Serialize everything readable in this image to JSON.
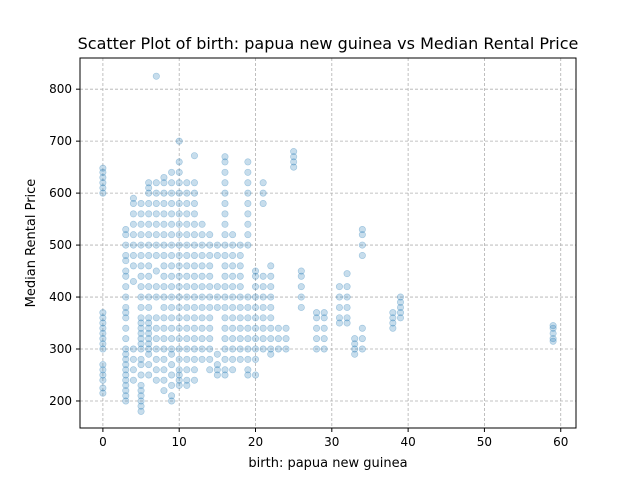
{
  "chart_data": {
    "type": "scatter",
    "title": "Scatter Plot of birth: papua new guinea vs Median Rental Price",
    "xlabel": "birth: papua new guinea",
    "ylabel": "Median Rental Price",
    "xlim": [
      -3,
      62
    ],
    "ylim": [
      148,
      860
    ],
    "xticks": [
      0,
      10,
      20,
      30,
      40,
      50,
      60
    ],
    "yticks": [
      200,
      300,
      400,
      500,
      600,
      700,
      800
    ],
    "grid": true,
    "marker_color": "#1f77b4",
    "marker_alpha": 0.25,
    "points": [
      [
        0,
        215
      ],
      [
        0,
        225
      ],
      [
        0,
        240
      ],
      [
        0,
        250
      ],
      [
        0,
        260
      ],
      [
        0,
        270
      ],
      [
        0,
        300
      ],
      [
        0,
        310
      ],
      [
        0,
        320
      ],
      [
        0,
        330
      ],
      [
        0,
        340
      ],
      [
        0,
        350
      ],
      [
        0,
        360
      ],
      [
        0,
        370
      ],
      [
        0,
        600
      ],
      [
        0,
        610
      ],
      [
        0,
        620
      ],
      [
        0,
        630
      ],
      [
        0,
        640
      ],
      [
        0,
        648
      ],
      [
        3,
        200
      ],
      [
        3,
        210
      ],
      [
        3,
        220
      ],
      [
        3,
        230
      ],
      [
        3,
        240
      ],
      [
        3,
        250
      ],
      [
        3,
        260
      ],
      [
        3,
        270
      ],
      [
        3,
        280
      ],
      [
        3,
        290
      ],
      [
        3,
        300
      ],
      [
        3,
        320
      ],
      [
        3,
        340
      ],
      [
        3,
        360
      ],
      [
        3,
        370
      ],
      [
        3,
        380
      ],
      [
        3,
        400
      ],
      [
        3,
        420
      ],
      [
        3,
        440
      ],
      [
        3,
        450
      ],
      [
        3,
        470
      ],
      [
        3,
        480
      ],
      [
        3,
        500
      ],
      [
        3,
        520
      ],
      [
        3,
        530
      ],
      [
        4,
        240
      ],
      [
        4,
        260
      ],
      [
        4,
        280
      ],
      [
        4,
        300
      ],
      [
        4,
        430
      ],
      [
        4,
        460
      ],
      [
        4,
        480
      ],
      [
        4,
        500
      ],
      [
        4,
        520
      ],
      [
        4,
        540
      ],
      [
        4,
        560
      ],
      [
        4,
        580
      ],
      [
        4,
        590
      ],
      [
        5,
        180
      ],
      [
        5,
        190
      ],
      [
        5,
        200
      ],
      [
        5,
        210
      ],
      [
        5,
        220
      ],
      [
        5,
        230
      ],
      [
        5,
        250
      ],
      [
        5,
        270
      ],
      [
        5,
        280
      ],
      [
        5,
        300
      ],
      [
        5,
        310
      ],
      [
        5,
        320
      ],
      [
        5,
        330
      ],
      [
        5,
        340
      ],
      [
        5,
        350
      ],
      [
        5,
        360
      ],
      [
        5,
        380
      ],
      [
        5,
        400
      ],
      [
        5,
        420
      ],
      [
        5,
        440
      ],
      [
        5,
        460
      ],
      [
        5,
        480
      ],
      [
        5,
        500
      ],
      [
        5,
        520
      ],
      [
        5,
        540
      ],
      [
        5,
        560
      ],
      [
        5,
        580
      ],
      [
        6,
        250
      ],
      [
        6,
        270
      ],
      [
        6,
        290
      ],
      [
        6,
        300
      ],
      [
        6,
        310
      ],
      [
        6,
        320
      ],
      [
        6,
        330
      ],
      [
        6,
        340
      ],
      [
        6,
        350
      ],
      [
        6,
        360
      ],
      [
        6,
        380
      ],
      [
        6,
        400
      ],
      [
        6,
        420
      ],
      [
        6,
        440
      ],
      [
        6,
        460
      ],
      [
        6,
        480
      ],
      [
        6,
        500
      ],
      [
        6,
        520
      ],
      [
        6,
        540
      ],
      [
        6,
        560
      ],
      [
        6,
        580
      ],
      [
        6,
        600
      ],
      [
        6,
        610
      ],
      [
        6,
        620
      ],
      [
        7,
        240
      ],
      [
        7,
        260
      ],
      [
        7,
        280
      ],
      [
        7,
        300
      ],
      [
        7,
        320
      ],
      [
        7,
        340
      ],
      [
        7,
        360
      ],
      [
        7,
        400
      ],
      [
        7,
        420
      ],
      [
        7,
        450
      ],
      [
        7,
        480
      ],
      [
        7,
        500
      ],
      [
        7,
        520
      ],
      [
        7,
        540
      ],
      [
        7,
        560
      ],
      [
        7,
        580
      ],
      [
        7,
        600
      ],
      [
        7,
        620
      ],
      [
        7,
        825
      ],
      [
        8,
        220
      ],
      [
        8,
        240
      ],
      [
        8,
        260
      ],
      [
        8,
        280
      ],
      [
        8,
        300
      ],
      [
        8,
        320
      ],
      [
        8,
        340
      ],
      [
        8,
        360
      ],
      [
        8,
        380
      ],
      [
        8,
        400
      ],
      [
        8,
        420
      ],
      [
        8,
        440
      ],
      [
        8,
        460
      ],
      [
        8,
        480
      ],
      [
        8,
        500
      ],
      [
        8,
        520
      ],
      [
        8,
        540
      ],
      [
        8,
        560
      ],
      [
        8,
        580
      ],
      [
        8,
        600
      ],
      [
        8,
        620
      ],
      [
        8,
        630
      ],
      [
        9,
        200
      ],
      [
        9,
        210
      ],
      [
        9,
        230
      ],
      [
        9,
        250
      ],
      [
        9,
        270
      ],
      [
        9,
        290
      ],
      [
        9,
        300
      ],
      [
        9,
        320
      ],
      [
        9,
        340
      ],
      [
        9,
        360
      ],
      [
        9,
        380
      ],
      [
        9,
        400
      ],
      [
        9,
        420
      ],
      [
        9,
        440
      ],
      [
        9,
        460
      ],
      [
        9,
        480
      ],
      [
        9,
        500
      ],
      [
        9,
        520
      ],
      [
        9,
        540
      ],
      [
        9,
        560
      ],
      [
        9,
        580
      ],
      [
        9,
        600
      ],
      [
        9,
        620
      ],
      [
        9,
        640
      ],
      [
        10,
        230
      ],
      [
        10,
        240
      ],
      [
        10,
        250
      ],
      [
        10,
        260
      ],
      [
        10,
        280
      ],
      [
        10,
        300
      ],
      [
        10,
        320
      ],
      [
        10,
        340
      ],
      [
        10,
        360
      ],
      [
        10,
        380
      ],
      [
        10,
        400
      ],
      [
        10,
        420
      ],
      [
        10,
        440
      ],
      [
        10,
        460
      ],
      [
        10,
        480
      ],
      [
        10,
        500
      ],
      [
        10,
        520
      ],
      [
        10,
        540
      ],
      [
        10,
        560
      ],
      [
        10,
        580
      ],
      [
        10,
        600
      ],
      [
        10,
        620
      ],
      [
        10,
        640
      ],
      [
        10,
        660
      ],
      [
        10,
        700
      ],
      [
        11,
        230
      ],
      [
        11,
        240
      ],
      [
        11,
        260
      ],
      [
        11,
        280
      ],
      [
        11,
        300
      ],
      [
        11,
        320
      ],
      [
        11,
        340
      ],
      [
        11,
        360
      ],
      [
        11,
        380
      ],
      [
        11,
        400
      ],
      [
        11,
        420
      ],
      [
        11,
        440
      ],
      [
        11,
        460
      ],
      [
        11,
        480
      ],
      [
        11,
        500
      ],
      [
        11,
        520
      ],
      [
        11,
        540
      ],
      [
        11,
        560
      ],
      [
        11,
        580
      ],
      [
        11,
        600
      ],
      [
        11,
        620
      ],
      [
        12,
        240
      ],
      [
        12,
        260
      ],
      [
        12,
        280
      ],
      [
        12,
        300
      ],
      [
        12,
        320
      ],
      [
        12,
        340
      ],
      [
        12,
        360
      ],
      [
        12,
        380
      ],
      [
        12,
        400
      ],
      [
        12,
        420
      ],
      [
        12,
        440
      ],
      [
        12,
        460
      ],
      [
        12,
        480
      ],
      [
        12,
        500
      ],
      [
        12,
        520
      ],
      [
        12,
        540
      ],
      [
        12,
        560
      ],
      [
        12,
        580
      ],
      [
        12,
        600
      ],
      [
        12,
        620
      ],
      [
        12,
        672
      ],
      [
        13,
        280
      ],
      [
        13,
        300
      ],
      [
        13,
        320
      ],
      [
        13,
        340
      ],
      [
        13,
        360
      ],
      [
        13,
        380
      ],
      [
        13,
        400
      ],
      [
        13,
        420
      ],
      [
        13,
        440
      ],
      [
        13,
        460
      ],
      [
        13,
        480
      ],
      [
        13,
        500
      ],
      [
        13,
        520
      ],
      [
        13,
        540
      ],
      [
        14,
        260
      ],
      [
        14,
        280
      ],
      [
        14,
        300
      ],
      [
        14,
        320
      ],
      [
        14,
        340
      ],
      [
        14,
        360
      ],
      [
        14,
        380
      ],
      [
        14,
        400
      ],
      [
        14,
        420
      ],
      [
        14,
        440
      ],
      [
        14,
        460
      ],
      [
        14,
        480
      ],
      [
        14,
        500
      ],
      [
        14,
        520
      ],
      [
        15,
        250
      ],
      [
        15,
        260
      ],
      [
        15,
        270
      ],
      [
        15,
        290
      ],
      [
        15,
        380
      ],
      [
        15,
        400
      ],
      [
        15,
        420
      ],
      [
        15,
        480
      ],
      [
        15,
        500
      ],
      [
        16,
        250
      ],
      [
        16,
        260
      ],
      [
        16,
        280
      ],
      [
        16,
        300
      ],
      [
        16,
        320
      ],
      [
        16,
        340
      ],
      [
        16,
        360
      ],
      [
        16,
        380
      ],
      [
        16,
        400
      ],
      [
        16,
        420
      ],
      [
        16,
        440
      ],
      [
        16,
        460
      ],
      [
        16,
        480
      ],
      [
        16,
        500
      ],
      [
        16,
        520
      ],
      [
        16,
        540
      ],
      [
        16,
        560
      ],
      [
        16,
        580
      ],
      [
        16,
        600
      ],
      [
        16,
        620
      ],
      [
        16,
        640
      ],
      [
        16,
        660
      ],
      [
        16,
        670
      ],
      [
        17,
        260
      ],
      [
        17,
        280
      ],
      [
        17,
        300
      ],
      [
        17,
        320
      ],
      [
        17,
        340
      ],
      [
        17,
        360
      ],
      [
        17,
        380
      ],
      [
        17,
        400
      ],
      [
        17,
        420
      ],
      [
        17,
        440
      ],
      [
        17,
        460
      ],
      [
        17,
        480
      ],
      [
        17,
        500
      ],
      [
        17,
        520
      ],
      [
        18,
        280
      ],
      [
        18,
        300
      ],
      [
        18,
        320
      ],
      [
        18,
        340
      ],
      [
        18,
        360
      ],
      [
        18,
        380
      ],
      [
        18,
        400
      ],
      [
        18,
        420
      ],
      [
        18,
        440
      ],
      [
        18,
        460
      ],
      [
        18,
        480
      ],
      [
        18,
        500
      ],
      [
        19,
        250
      ],
      [
        19,
        260
      ],
      [
        19,
        280
      ],
      [
        19,
        300
      ],
      [
        19,
        320
      ],
      [
        19,
        340
      ],
      [
        19,
        360
      ],
      [
        19,
        380
      ],
      [
        19,
        400
      ],
      [
        19,
        500
      ],
      [
        19,
        520
      ],
      [
        19,
        540
      ],
      [
        19,
        560
      ],
      [
        19,
        580
      ],
      [
        19,
        600
      ],
      [
        19,
        620
      ],
      [
        19,
        640
      ],
      [
        19,
        660
      ],
      [
        20,
        250
      ],
      [
        20,
        280
      ],
      [
        20,
        300
      ],
      [
        20,
        320
      ],
      [
        20,
        340
      ],
      [
        20,
        360
      ],
      [
        20,
        380
      ],
      [
        20,
        400
      ],
      [
        20,
        420
      ],
      [
        20,
        440
      ],
      [
        20,
        450
      ],
      [
        21,
        300
      ],
      [
        21,
        320
      ],
      [
        21,
        340
      ],
      [
        21,
        360
      ],
      [
        21,
        380
      ],
      [
        21,
        400
      ],
      [
        21,
        420
      ],
      [
        21,
        440
      ],
      [
        21,
        580
      ],
      [
        21,
        600
      ],
      [
        21,
        620
      ],
      [
        22,
        290
      ],
      [
        22,
        300
      ],
      [
        22,
        320
      ],
      [
        22,
        340
      ],
      [
        22,
        360
      ],
      [
        22,
        380
      ],
      [
        22,
        400
      ],
      [
        22,
        420
      ],
      [
        22,
        440
      ],
      [
        22,
        460
      ],
      [
        23,
        300
      ],
      [
        23,
        320
      ],
      [
        23,
        340
      ],
      [
        24,
        300
      ],
      [
        24,
        320
      ],
      [
        24,
        340
      ],
      [
        25,
        650
      ],
      [
        25,
        660
      ],
      [
        25,
        670
      ],
      [
        25,
        680
      ],
      [
        26,
        380
      ],
      [
        26,
        400
      ],
      [
        26,
        420
      ],
      [
        26,
        440
      ],
      [
        26,
        450
      ],
      [
        28,
        300
      ],
      [
        28,
        320
      ],
      [
        28,
        340
      ],
      [
        28,
        360
      ],
      [
        28,
        370
      ],
      [
        29,
        300
      ],
      [
        29,
        320
      ],
      [
        29,
        340
      ],
      [
        29,
        360
      ],
      [
        29,
        370
      ],
      [
        31,
        350
      ],
      [
        31,
        360
      ],
      [
        31,
        380
      ],
      [
        31,
        400
      ],
      [
        31,
        420
      ],
      [
        32,
        350
      ],
      [
        32,
        360
      ],
      [
        32,
        380
      ],
      [
        32,
        400
      ],
      [
        32,
        420
      ],
      [
        32,
        445
      ],
      [
        33,
        290
      ],
      [
        33,
        300
      ],
      [
        33,
        310
      ],
      [
        33,
        320
      ],
      [
        34,
        300
      ],
      [
        34,
        320
      ],
      [
        34,
        340
      ],
      [
        34,
        480
      ],
      [
        34,
        500
      ],
      [
        34,
        520
      ],
      [
        34,
        530
      ],
      [
        38,
        340
      ],
      [
        38,
        350
      ],
      [
        38,
        360
      ],
      [
        38,
        370
      ],
      [
        39,
        360
      ],
      [
        39,
        370
      ],
      [
        39,
        380
      ],
      [
        39,
        390
      ],
      [
        39,
        400
      ],
      [
        59,
        315
      ],
      [
        59,
        320
      ],
      [
        59,
        330
      ],
      [
        59,
        340
      ],
      [
        59,
        345
      ]
    ]
  }
}
